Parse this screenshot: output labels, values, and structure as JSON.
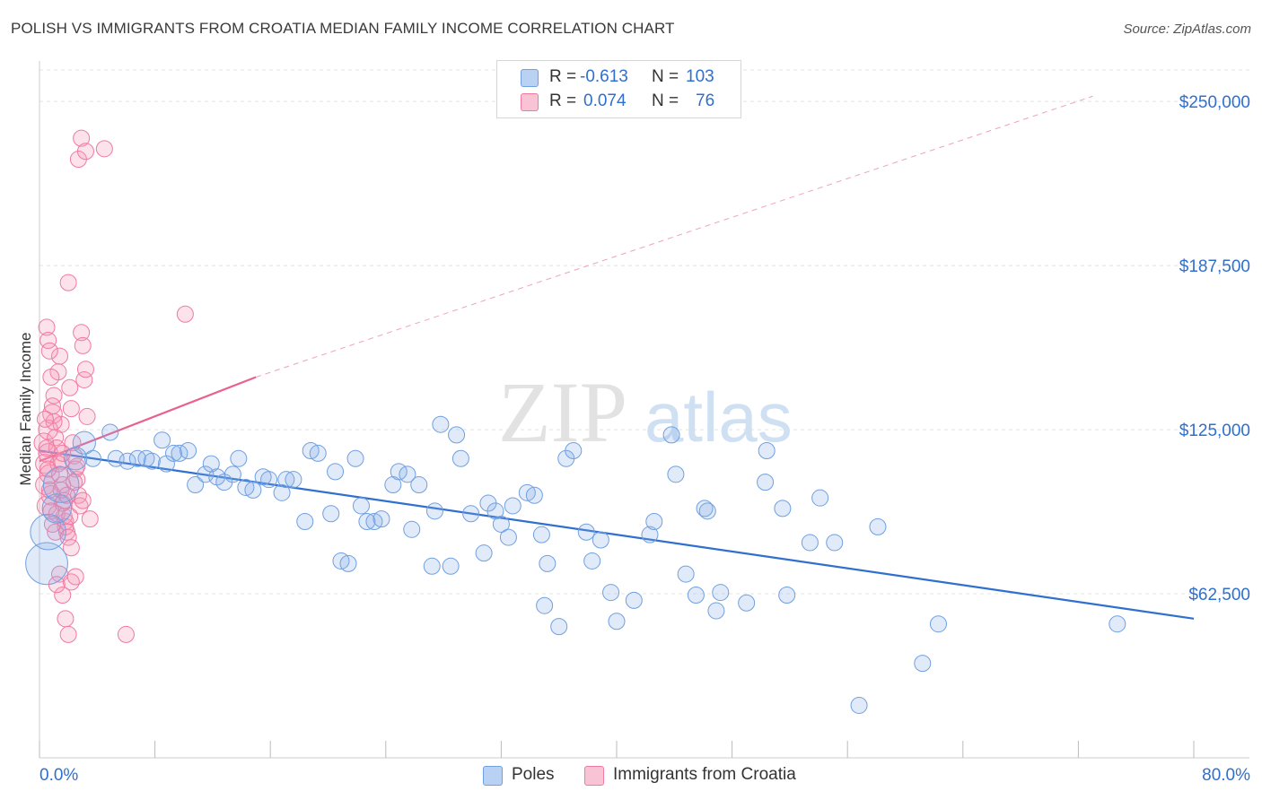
{
  "title": "POLISH VS IMMIGRANTS FROM CROATIA MEDIAN FAMILY INCOME CORRELATION CHART",
  "source": "Source: ZipAtlas.com",
  "watermark": {
    "zip": "ZIP",
    "atlas": "atlas"
  },
  "legend": {
    "r_label": "R =",
    "n_label": "N =",
    "rows": [
      {
        "r": "-0.613",
        "n": "103",
        "color": "#6fa0e0"
      },
      {
        "r": "0.074",
        "n": "76",
        "color": "#f07aa0"
      }
    ]
  },
  "bottom_legend": [
    {
      "label": "Poles",
      "color": "#6fa0e0"
    },
    {
      "label": "Immigrants from Croatia",
      "color": "#f07aa0"
    }
  ],
  "colors": {
    "blue": "#2f6fce",
    "pink": "#e8628f",
    "grid": "#e4e4e4",
    "axis_text": "#2f6fce"
  },
  "chart_data": {
    "type": "scatter",
    "title": "POLISH VS IMMIGRANTS FROM CROATIA MEDIAN FAMILY INCOME CORRELATION CHART",
    "ylabel": "Median Family Income",
    "xlabel": "",
    "x_tick_labels": [
      "0.0%",
      "80.0%"
    ],
    "y_tick_labels": [
      "$62,500",
      "$125,000",
      "$187,500",
      "$250,000"
    ],
    "y_ticks": [
      62500,
      125000,
      187500,
      250000
    ],
    "xlim": [
      0,
      80
    ],
    "ylim": [
      0,
      262000
    ],
    "grid": true,
    "legend_position": "top-center",
    "series": [
      {
        "name": "Poles",
        "r": -0.613,
        "n": 103,
        "trend": {
          "x": [
            0,
            80
          ],
          "y": [
            117000,
            53000
          ],
          "style": "solid"
        },
        "points": [
          [
            0.5,
            74000,
            26
          ],
          [
            0.6,
            86000,
            22
          ],
          [
            1.2,
            95000,
            18
          ],
          [
            1.5,
            104000,
            22
          ],
          [
            2.5,
            114000,
            14
          ],
          [
            3.1,
            120000,
            14
          ],
          [
            3.7,
            114000,
            10
          ],
          [
            4.9,
            124000,
            10
          ],
          [
            5.3,
            114000,
            10
          ],
          [
            6.1,
            113000,
            10
          ],
          [
            6.8,
            114000,
            10
          ],
          [
            7.4,
            114000,
            10
          ],
          [
            7.8,
            113000,
            10
          ],
          [
            8.5,
            121000,
            10
          ],
          [
            8.8,
            112000,
            10
          ],
          [
            9.3,
            116000,
            10
          ],
          [
            9.7,
            116000,
            10
          ],
          [
            10.3,
            117000,
            10
          ],
          [
            10.8,
            104000,
            10
          ],
          [
            11.5,
            108000,
            10
          ],
          [
            11.9,
            112000,
            10
          ],
          [
            12.3,
            107000,
            10
          ],
          [
            12.8,
            105000,
            10
          ],
          [
            13.4,
            108000,
            10
          ],
          [
            13.8,
            114000,
            10
          ],
          [
            14.3,
            103000,
            10
          ],
          [
            14.8,
            102000,
            10
          ],
          [
            15.5,
            107000,
            10
          ],
          [
            15.9,
            106000,
            10
          ],
          [
            16.8,
            101000,
            10
          ],
          [
            17.1,
            106000,
            10
          ],
          [
            17.6,
            106000,
            10
          ],
          [
            18.4,
            90000,
            10
          ],
          [
            18.8,
            117000,
            10
          ],
          [
            19.3,
            116000,
            10
          ],
          [
            20.2,
            93000,
            10
          ],
          [
            20.5,
            109000,
            10
          ],
          [
            20.9,
            75000,
            10
          ],
          [
            21.4,
            74000,
            10
          ],
          [
            21.9,
            114000,
            10
          ],
          [
            22.3,
            96000,
            10
          ],
          [
            22.7,
            90000,
            10
          ],
          [
            23.2,
            90000,
            10
          ],
          [
            23.7,
            91000,
            10
          ],
          [
            24.5,
            104000,
            10
          ],
          [
            24.9,
            109000,
            10
          ],
          [
            25.5,
            108000,
            10
          ],
          [
            25.8,
            87000,
            10
          ],
          [
            26.3,
            104000,
            10
          ],
          [
            27.2,
            73000,
            10
          ],
          [
            27.4,
            94000,
            10
          ],
          [
            27.8,
            127000,
            10
          ],
          [
            28.5,
            73000,
            10
          ],
          [
            28.9,
            123000,
            10
          ],
          [
            29.2,
            114000,
            10
          ],
          [
            29.9,
            93000,
            10
          ],
          [
            30.8,
            78000,
            10
          ],
          [
            31.1,
            97000,
            10
          ],
          [
            31.6,
            94000,
            10
          ],
          [
            32.0,
            89000,
            10
          ],
          [
            32.5,
            84000,
            10
          ],
          [
            32.8,
            96000,
            10
          ],
          [
            33.8,
            101000,
            10
          ],
          [
            34.3,
            100000,
            10
          ],
          [
            34.8,
            85000,
            10
          ],
          [
            35.0,
            58000,
            10
          ],
          [
            35.2,
            74000,
            10
          ],
          [
            36.0,
            50000,
            10
          ],
          [
            36.5,
            114000,
            10
          ],
          [
            37.0,
            117000,
            10
          ],
          [
            37.9,
            86000,
            10
          ],
          [
            38.3,
            75000,
            10
          ],
          [
            38.9,
            83000,
            10
          ],
          [
            39.6,
            63000,
            10
          ],
          [
            40.0,
            52000,
            10
          ],
          [
            41.2,
            60000,
            10
          ],
          [
            42.3,
            85000,
            10
          ],
          [
            42.6,
            90000,
            10
          ],
          [
            43.8,
            123000,
            10
          ],
          [
            44.1,
            108000,
            10
          ],
          [
            44.8,
            70000,
            10
          ],
          [
            45.5,
            62000,
            10
          ],
          [
            46.1,
            95000,
            10
          ],
          [
            46.3,
            94000,
            10
          ],
          [
            46.9,
            56000,
            10
          ],
          [
            47.2,
            63000,
            10
          ],
          [
            49.0,
            59000,
            10
          ],
          [
            50.3,
            105000,
            10
          ],
          [
            50.4,
            117000,
            10
          ],
          [
            51.5,
            95000,
            10
          ],
          [
            51.8,
            62000,
            10
          ],
          [
            53.4,
            82000,
            10
          ],
          [
            54.1,
            99000,
            10
          ],
          [
            55.1,
            82000,
            10
          ],
          [
            58.1,
            88000,
            10
          ],
          [
            61.2,
            36000,
            10
          ],
          [
            62.3,
            51000,
            10
          ],
          [
            74.7,
            51000,
            10
          ],
          [
            56.8,
            20000,
            10
          ]
        ]
      },
      {
        "name": "Immigrants from Croatia",
        "r": 0.074,
        "n": 76,
        "trend": {
          "x": [
            0,
            15
          ],
          "y": [
            113000,
            145000
          ],
          "style": "solid",
          "ext_x": [
            15,
            73
          ],
          "ext_y": [
            145000,
            252000
          ],
          "ext_style": "dashed"
        },
        "points": [
          [
            0.3,
            120000,
            12
          ],
          [
            0.4,
            112000,
            12
          ],
          [
            0.4,
            104000,
            12
          ],
          [
            0.5,
            96000,
            12
          ],
          [
            0.6,
            116000,
            12
          ],
          [
            0.6,
            125000,
            12
          ],
          [
            0.7,
            108000,
            12
          ],
          [
            0.8,
            100000,
            12
          ],
          [
            0.9,
            131000,
            12
          ],
          [
            1.0,
            138000,
            10
          ],
          [
            1.1,
            86000,
            10
          ],
          [
            1.2,
            93000,
            10
          ],
          [
            1.3,
            147000,
            10
          ],
          [
            1.4,
            153000,
            10
          ],
          [
            1.5,
            127000,
            10
          ],
          [
            1.5,
            113000,
            10
          ],
          [
            1.6,
            104000,
            10
          ],
          [
            1.7,
            98000,
            10
          ],
          [
            1.8,
            90000,
            10
          ],
          [
            1.9,
            86000,
            10
          ],
          [
            2.0,
            181000,
            10
          ],
          [
            2.1,
            141000,
            10
          ],
          [
            2.2,
            133000,
            10
          ],
          [
            2.3,
            120000,
            10
          ],
          [
            2.4,
            115000,
            10
          ],
          [
            2.5,
            110000,
            10
          ],
          [
            2.6,
            106000,
            10
          ],
          [
            2.7,
            100000,
            10
          ],
          [
            2.8,
            96000,
            10
          ],
          [
            2.9,
            162000,
            10
          ],
          [
            3.0,
            157000,
            10
          ],
          [
            3.1,
            144000,
            10
          ],
          [
            3.2,
            148000,
            10
          ],
          [
            3.3,
            130000,
            10
          ],
          [
            1.4,
            70000,
            10
          ],
          [
            1.6,
            62000,
            10
          ],
          [
            1.8,
            53000,
            10
          ],
          [
            2.0,
            47000,
            10
          ],
          [
            2.2,
            67000,
            10
          ],
          [
            2.5,
            69000,
            10
          ],
          [
            2.7,
            228000,
            10
          ],
          [
            2.9,
            236000,
            10
          ],
          [
            3.2,
            231000,
            10
          ],
          [
            4.5,
            232000,
            10
          ],
          [
            6.0,
            47000,
            10
          ],
          [
            10.1,
            169000,
            10
          ],
          [
            0.5,
            164000,
            10
          ],
          [
            0.6,
            159000,
            10
          ],
          [
            0.7,
            155000,
            10
          ],
          [
            0.8,
            145000,
            10
          ],
          [
            0.9,
            134000,
            10
          ],
          [
            1.0,
            128000,
            10
          ],
          [
            1.1,
            122000,
            10
          ],
          [
            1.2,
            118000,
            10
          ],
          [
            1.3,
            112000,
            10
          ],
          [
            1.4,
            108000,
            10
          ],
          [
            1.5,
            102000,
            10
          ],
          [
            1.6,
            97000,
            10
          ],
          [
            1.7,
            92000,
            10
          ],
          [
            1.8,
            88000,
            10
          ],
          [
            2.0,
            84000,
            10
          ],
          [
            2.2,
            80000,
            10
          ],
          [
            3.5,
            91000,
            10
          ],
          [
            0.4,
            129000,
            10
          ],
          [
            0.5,
            118000,
            10
          ],
          [
            0.6,
            110000,
            10
          ],
          [
            0.7,
            102000,
            10
          ],
          [
            0.8,
            94000,
            10
          ],
          [
            0.9,
            89000,
            10
          ],
          [
            1.2,
            66000,
            10
          ],
          [
            2.6,
            111000,
            10
          ],
          [
            3.0,
            98000,
            10
          ],
          [
            1.9,
            100000,
            10
          ],
          [
            2.4,
            105000,
            10
          ],
          [
            2.1,
            92000,
            10
          ],
          [
            1.6,
            116000,
            10
          ]
        ]
      }
    ]
  }
}
